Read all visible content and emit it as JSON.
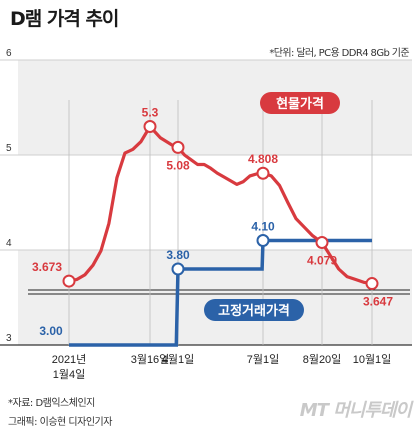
{
  "title": "D램 가격 추이",
  "unit_note": "*단위: 달러, PC용 DDR4 8Gb 기준",
  "source": "*자료: D램익스체인지",
  "graphic_credit": "그래픽: 이승현 디자인기자",
  "logo_text": "MT 머니투데이",
  "colors": {
    "spot": "#d83a3f",
    "contract": "#2b62a8",
    "band": "#efefef",
    "label_box_red": "#d83a3f",
    "label_box_blue": "#2b62a8"
  },
  "chart_data": {
    "type": "line",
    "ylim": [
      3,
      6
    ],
    "y_ticks": [
      "3",
      "4",
      "5",
      "6"
    ],
    "x_ticks": [
      {
        "line1": "2021년",
        "line2": "1월4일",
        "date": "2021-01-04"
      },
      {
        "line1": "3월16일",
        "line2": "",
        "date": "2021-03-16"
      },
      {
        "line1": "4월1일",
        "line2": "",
        "date": "2021-04-01"
      },
      {
        "line1": "7월1일",
        "line2": "",
        "date": "2021-07-01"
      },
      {
        "line1": "8월20일",
        "line2": "",
        "date": "2021-08-20"
      },
      {
        "line1": "10월1일",
        "line2": "",
        "date": "2021-10-01"
      }
    ],
    "series": [
      {
        "name": "현물가격",
        "color": "#d83a3f",
        "points": [
          [
            "2021-01-04",
            3.673
          ],
          [
            "2021-01-11",
            3.69
          ],
          [
            "2021-01-18",
            3.74
          ],
          [
            "2021-01-25",
            3.84
          ],
          [
            "2021-02-01",
            3.99
          ],
          [
            "2021-02-08",
            4.28
          ],
          [
            "2021-02-15",
            4.76
          ],
          [
            "2021-02-22",
            5.02
          ],
          [
            "2021-03-01",
            5.06
          ],
          [
            "2021-03-08",
            5.14
          ],
          [
            "2021-03-16",
            5.3
          ],
          [
            "2021-03-22",
            5.18
          ],
          [
            "2021-03-29",
            5.1
          ],
          [
            "2021-04-01",
            5.08
          ],
          [
            "2021-04-08",
            5.0
          ],
          [
            "2021-04-15",
            4.95
          ],
          [
            "2021-04-22",
            4.9
          ],
          [
            "2021-04-29",
            4.9
          ],
          [
            "2021-05-06",
            4.86
          ],
          [
            "2021-05-13",
            4.81
          ],
          [
            "2021-05-20",
            4.77
          ],
          [
            "2021-05-27",
            4.73
          ],
          [
            "2021-06-03",
            4.69
          ],
          [
            "2021-06-10",
            4.72
          ],
          [
            "2021-06-17",
            4.78
          ],
          [
            "2021-06-24",
            4.8
          ],
          [
            "2021-07-01",
            4.808
          ],
          [
            "2021-07-08",
            4.78
          ],
          [
            "2021-07-15",
            4.68
          ],
          [
            "2021-07-22",
            4.5
          ],
          [
            "2021-07-29",
            4.33
          ],
          [
            "2021-08-05",
            4.24
          ],
          [
            "2021-08-12",
            4.15
          ],
          [
            "2021-08-20",
            4.079
          ],
          [
            "2021-08-27",
            3.94
          ],
          [
            "2021-09-03",
            3.8
          ],
          [
            "2021-09-10",
            3.72
          ],
          [
            "2021-09-17",
            3.69
          ],
          [
            "2021-09-24",
            3.66
          ],
          [
            "2021-10-01",
            3.647
          ]
        ],
        "labels": [
          {
            "date": "2021-01-04",
            "value": 3.673,
            "text": "3.673",
            "pos": "above"
          },
          {
            "date": "2021-03-16",
            "value": 5.3,
            "text": "5.3",
            "pos": "above"
          },
          {
            "date": "2021-04-01",
            "value": 5.08,
            "text": "5.08",
            "pos": "below"
          },
          {
            "date": "2021-07-01",
            "value": 4.808,
            "text": "4.808",
            "pos": "above"
          },
          {
            "date": "2021-08-20",
            "value": 4.079,
            "text": "4.079",
            "pos": "below"
          },
          {
            "date": "2021-10-01",
            "value": 3.647,
            "text": "3.647",
            "pos": "below"
          }
        ]
      },
      {
        "name": "고정거래가격",
        "color": "#2b62a8",
        "points": [
          [
            "2021-01-04",
            3.0
          ],
          [
            "2021-03-31",
            3.0
          ],
          [
            "2021-04-01",
            3.8
          ],
          [
            "2021-06-30",
            3.8
          ],
          [
            "2021-07-01",
            4.1
          ],
          [
            "2021-10-01",
            4.1
          ]
        ],
        "labels": [
          {
            "date": "2021-01-04",
            "value": 3.0,
            "text": "3.00",
            "pos": "above"
          },
          {
            "date": "2021-04-01",
            "value": 3.8,
            "text": "3.80",
            "pos": "above"
          },
          {
            "date": "2021-07-01",
            "value": 4.1,
            "text": "4.10",
            "pos": "above"
          }
        ],
        "markers": [
          {
            "date": "2021-04-01",
            "value": 3.8
          },
          {
            "date": "2021-07-01",
            "value": 4.1
          }
        ]
      }
    ]
  }
}
